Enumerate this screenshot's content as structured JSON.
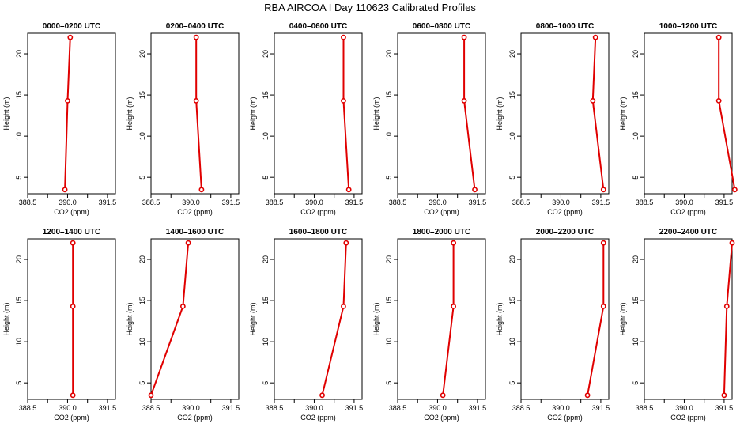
{
  "figure": {
    "title": "RBA AIRCOA I  Day 110623  Calibrated Profiles"
  },
  "chart_data": {
    "type": "line",
    "xlabel": "CO2 (ppm)",
    "ylabel": "Height (m)",
    "xlim": [
      388.5,
      391.8
    ],
    "ylim": [
      3,
      22.5
    ],
    "x_ticks": [
      "388.5",
      "390.0",
      "391.5"
    ],
    "y_ticks": [
      "5",
      "10",
      "15",
      "20"
    ],
    "heights": [
      22,
      14.3,
      3.5
    ],
    "line_color": "#e00000",
    "panels": [
      {
        "title": "0000–0200 UTC",
        "co2": [
          390.1,
          390.0,
          389.9
        ]
      },
      {
        "title": "0200–0400 UTC",
        "co2": [
          390.2,
          390.2,
          390.4
        ]
      },
      {
        "title": "0400–0600 UTC",
        "co2": [
          391.1,
          391.1,
          391.3
        ]
      },
      {
        "title": "0600–0800 UTC",
        "co2": [
          391.0,
          391.0,
          391.4
        ]
      },
      {
        "title": "0800–1000 UTC",
        "co2": [
          391.3,
          391.2,
          391.6
        ]
      },
      {
        "title": "1000–1200 UTC",
        "co2": [
          391.3,
          391.3,
          391.9
        ]
      },
      {
        "title": "1200–1400 UTC",
        "co2": [
          390.2,
          390.2,
          390.2
        ]
      },
      {
        "title": "1400–1600 UTC",
        "co2": [
          389.9,
          389.7,
          388.5
        ]
      },
      {
        "title": "1600–1800 UTC",
        "co2": [
          391.2,
          391.1,
          390.3
        ]
      },
      {
        "title": "1800–2000 UTC",
        "co2": [
          390.6,
          390.6,
          390.2
        ]
      },
      {
        "title": "2000–2200 UTC",
        "co2": [
          391.6,
          391.6,
          391.0
        ]
      },
      {
        "title": "2200–2400 UTC",
        "co2": [
          391.8,
          391.6,
          391.5
        ]
      }
    ]
  }
}
